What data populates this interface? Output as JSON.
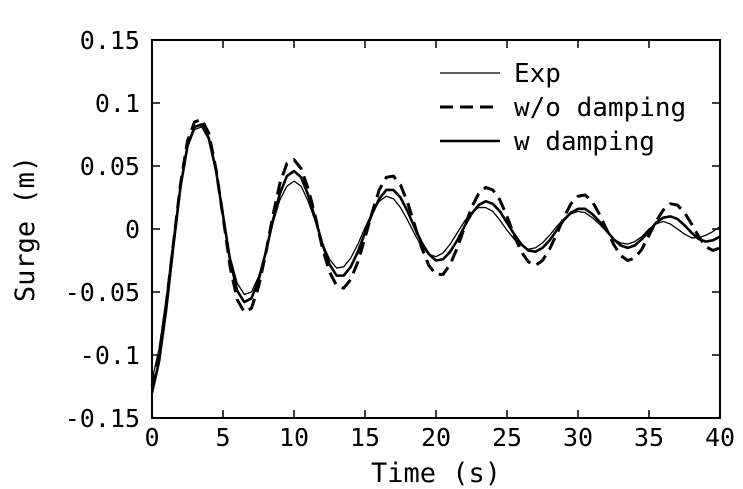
{
  "chart_data": {
    "type": "line",
    "title": "",
    "xlabel": "Time (s)",
    "ylabel": "Surge (m)",
    "xlim": [
      0,
      40
    ],
    "ylim": [
      -0.15,
      0.15
    ],
    "xticks": [
      0,
      5,
      10,
      15,
      20,
      25,
      30,
      35,
      40
    ],
    "xtick_labels": [
      "0",
      "5",
      "10",
      "15",
      "20",
      "25",
      "30",
      "35",
      "40"
    ],
    "yticks": [
      -0.15,
      -0.1,
      -0.05,
      0,
      0.05,
      0.1,
      0.15
    ],
    "ytick_labels": [
      "-0.15",
      "-0.1",
      "-0.05",
      "0",
      "0.05",
      "0.1",
      "0.15"
    ],
    "grid": false,
    "legend_position": "top-right",
    "series": [
      {
        "name": "Exp",
        "style": "thin-solid",
        "color": "#000000",
        "x": [
          0,
          0.5,
          1,
          1.5,
          2,
          2.5,
          3,
          3.5,
          4,
          4.5,
          5,
          5.5,
          6,
          6.5,
          7,
          7.5,
          8,
          8.5,
          9,
          9.5,
          10,
          10.5,
          11,
          11.5,
          12,
          12.5,
          13,
          13.5,
          14,
          14.5,
          15,
          15.5,
          16,
          16.5,
          17,
          17.5,
          18,
          18.5,
          19,
          19.5,
          20,
          20.5,
          21,
          21.5,
          22,
          22.5,
          23,
          23.5,
          24,
          24.5,
          25,
          25.5,
          26,
          26.5,
          27,
          27.5,
          28,
          28.5,
          29,
          29.5,
          30,
          30.5,
          31,
          31.5,
          32,
          32.5,
          33,
          33.5,
          34,
          34.5,
          35,
          35.5,
          36,
          36.5,
          37,
          37.5,
          38,
          38.5,
          39,
          39.5,
          40
        ],
        "y": [
          -0.12,
          -0.095,
          -0.055,
          -0.008,
          0.035,
          0.065,
          0.079,
          0.081,
          0.071,
          0.046,
          0.012,
          -0.022,
          -0.043,
          -0.052,
          -0.05,
          -0.038,
          -0.018,
          0.004,
          0.023,
          0.034,
          0.038,
          0.034,
          0.022,
          0.006,
          -0.011,
          -0.024,
          -0.031,
          -0.03,
          -0.023,
          -0.012,
          0.001,
          0.013,
          0.022,
          0.026,
          0.024,
          0.017,
          0.007,
          -0.004,
          -0.014,
          -0.02,
          -0.022,
          -0.019,
          -0.012,
          -0.003,
          0.006,
          0.013,
          0.017,
          0.017,
          0.014,
          0.007,
          -0.001,
          -0.008,
          -0.013,
          -0.016,
          -0.015,
          -0.011,
          -0.005,
          0.002,
          0.008,
          0.012,
          0.014,
          0.013,
          0.009,
          0.004,
          -0.002,
          -0.008,
          -0.011,
          -0.012,
          -0.01,
          -0.006,
          0.0,
          0.004,
          0.006,
          0.004,
          0.0,
          -0.004,
          -0.007,
          -0.007,
          -0.005,
          -0.002,
          0.002
        ]
      },
      {
        "name": "w/o damping",
        "style": "dashed",
        "color": "#000000",
        "x": [
          0,
          0.5,
          1,
          1.5,
          2,
          2.5,
          3,
          3.5,
          4,
          4.5,
          5,
          5.5,
          6,
          6.5,
          7,
          7.5,
          8,
          8.5,
          9,
          9.5,
          10,
          10.5,
          11,
          11.5,
          12,
          12.5,
          13,
          13.5,
          14,
          14.5,
          15,
          15.5,
          16,
          16.5,
          17,
          17.5,
          18,
          18.5,
          19,
          19.5,
          20,
          20.5,
          21,
          21.5,
          22,
          22.5,
          23,
          23.5,
          24,
          24.5,
          25,
          25.5,
          26,
          26.5,
          27,
          27.5,
          28,
          28.5,
          29,
          29.5,
          30,
          30.5,
          31,
          31.5,
          32,
          32.5,
          33,
          33.5,
          34,
          34.5,
          35,
          35.5,
          36,
          36.5,
          37,
          37.5,
          38,
          38.5,
          39,
          39.5,
          40
        ],
        "y": [
          -0.125,
          -0.1,
          -0.06,
          -0.012,
          0.035,
          0.07,
          0.085,
          0.087,
          0.076,
          0.048,
          0.01,
          -0.03,
          -0.056,
          -0.066,
          -0.063,
          -0.046,
          -0.02,
          0.01,
          0.036,
          0.052,
          0.055,
          0.048,
          0.032,
          0.01,
          -0.015,
          -0.034,
          -0.045,
          -0.047,
          -0.04,
          -0.026,
          -0.007,
          0.013,
          0.031,
          0.041,
          0.042,
          0.035,
          0.021,
          0.003,
          -0.015,
          -0.029,
          -0.036,
          -0.036,
          -0.028,
          -0.015,
          0.001,
          0.017,
          0.028,
          0.033,
          0.031,
          0.023,
          0.01,
          -0.005,
          -0.018,
          -0.026,
          -0.029,
          -0.025,
          -0.016,
          -0.004,
          0.009,
          0.02,
          0.026,
          0.027,
          0.022,
          0.012,
          0.0,
          -0.012,
          -0.021,
          -0.025,
          -0.023,
          -0.016,
          -0.005,
          0.006,
          0.015,
          0.02,
          0.019,
          0.013,
          0.004,
          -0.006,
          -0.014,
          -0.017,
          -0.015
        ]
      },
      {
        "name": "w damping",
        "style": "thick-solid",
        "color": "#000000",
        "x": [
          0,
          0.5,
          1,
          1.5,
          2,
          2.5,
          3,
          3.5,
          4,
          4.5,
          5,
          5.5,
          6,
          6.5,
          7,
          7.5,
          8,
          8.5,
          9,
          9.5,
          10,
          10.5,
          11,
          11.5,
          12,
          12.5,
          13,
          13.5,
          14,
          14.5,
          15,
          15.5,
          16,
          16.5,
          17,
          17.5,
          18,
          18.5,
          19,
          19.5,
          20,
          20.5,
          21,
          21.5,
          22,
          22.5,
          23,
          23.5,
          24,
          24.5,
          25,
          25.5,
          26,
          26.5,
          27,
          27.5,
          28,
          28.5,
          29,
          29.5,
          30,
          30.5,
          31,
          31.5,
          32,
          32.5,
          33,
          33.5,
          34,
          34.5,
          35,
          35.5,
          36,
          36.5,
          37,
          37.5,
          38,
          38.5,
          39,
          39.5,
          40
        ],
        "y": [
          -0.13,
          -0.105,
          -0.064,
          -0.014,
          0.033,
          0.066,
          0.081,
          0.083,
          0.072,
          0.047,
          0.011,
          -0.025,
          -0.049,
          -0.058,
          -0.055,
          -0.041,
          -0.019,
          0.006,
          0.028,
          0.042,
          0.046,
          0.041,
          0.027,
          0.008,
          -0.012,
          -0.028,
          -0.037,
          -0.037,
          -0.03,
          -0.018,
          -0.003,
          0.012,
          0.024,
          0.031,
          0.031,
          0.025,
          0.014,
          0.001,
          -0.011,
          -0.02,
          -0.025,
          -0.024,
          -0.018,
          -0.009,
          0.002,
          0.012,
          0.019,
          0.022,
          0.02,
          0.014,
          0.005,
          -0.004,
          -0.012,
          -0.017,
          -0.018,
          -0.015,
          -0.009,
          -0.001,
          0.007,
          0.013,
          0.016,
          0.016,
          0.012,
          0.006,
          -0.001,
          -0.008,
          -0.013,
          -0.015,
          -0.013,
          -0.008,
          -0.002,
          0.005,
          0.009,
          0.01,
          0.008,
          0.003,
          -0.003,
          -0.008,
          -0.01,
          -0.009,
          -0.006
        ]
      }
    ]
  }
}
